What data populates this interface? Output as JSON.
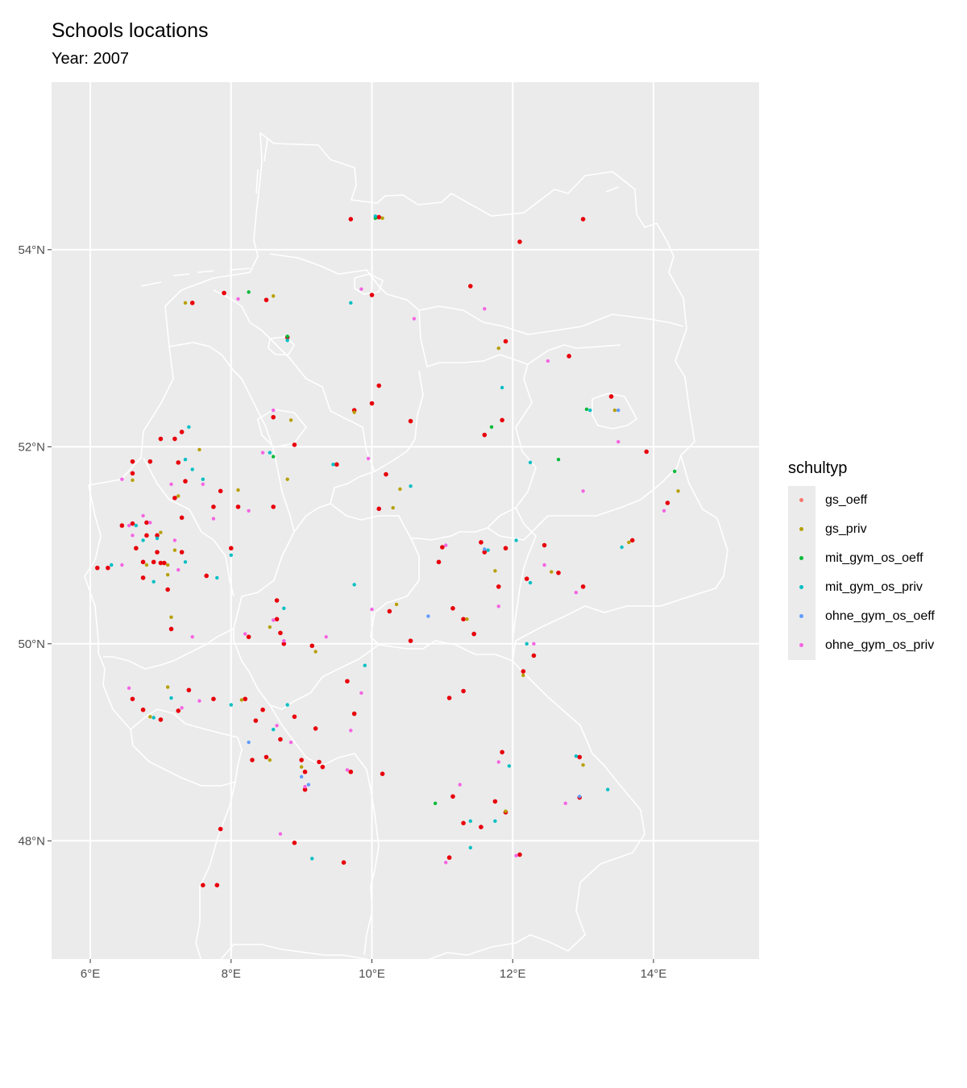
{
  "title": "Schools locations",
  "subtitle": "Year: 2007",
  "chart_data": {
    "type": "scatter",
    "projection": "map",
    "title": "Schools locations",
    "subtitle": "Year: 2007",
    "xlim": [
      5.45,
      15.5
    ],
    "ylim": [
      46.8,
      55.7
    ],
    "x_ticks": [
      {
        "value": 6,
        "label": "6°E"
      },
      {
        "value": 8,
        "label": "8°E"
      },
      {
        "value": 10,
        "label": "10°E"
      },
      {
        "value": 12,
        "label": "12°E"
      },
      {
        "value": 14,
        "label": "14°E"
      }
    ],
    "y_ticks": [
      {
        "value": 48,
        "label": "48°N"
      },
      {
        "value": 50,
        "label": "50°N"
      },
      {
        "value": 52,
        "label": "52°N"
      },
      {
        "value": 54,
        "label": "54°N"
      }
    ],
    "grid": true,
    "background": "#ebebeb",
    "legend": {
      "title": "schultyp",
      "position": "right",
      "entries": [
        {
          "name": "gs_oeff",
          "color": "#f8766d"
        },
        {
          "name": "gs_priv",
          "color": "#b79f00"
        },
        {
          "name": "mit_gym_os_oeff",
          "color": "#00ba38"
        },
        {
          "name": "mit_gym_os_priv",
          "color": "#00bfc4"
        },
        {
          "name": "ohne_gym_os_oeff",
          "color": "#619cff"
        },
        {
          "name": "ohne_gym_os_priv",
          "color": "#f564e3"
        }
      ]
    },
    "highlight_color": "#e8000b",
    "boundary_color": "#ffffff",
    "series": [
      {
        "name": "gs_oeff",
        "color": "#f8766d",
        "points": [
          [
            9.7,
            54.31
          ],
          [
            10.1,
            54.33
          ],
          [
            13.0,
            54.31
          ],
          [
            12.1,
            54.08
          ],
          [
            7.45,
            53.46
          ],
          [
            7.9,
            53.56
          ],
          [
            8.5,
            53.49
          ],
          [
            10.0,
            53.54
          ],
          [
            11.4,
            53.63
          ],
          [
            8.8,
            53.11
          ],
          [
            11.9,
            53.07
          ],
          [
            12.8,
            52.92
          ],
          [
            10.1,
            52.62
          ],
          [
            9.75,
            52.37
          ],
          [
            10.0,
            52.44
          ],
          [
            10.55,
            52.26
          ],
          [
            8.6,
            52.3
          ],
          [
            13.4,
            52.51
          ],
          [
            11.85,
            52.27
          ],
          [
            11.6,
            52.12
          ],
          [
            13.9,
            51.95
          ],
          [
            8.9,
            52.02
          ],
          [
            9.5,
            51.82
          ],
          [
            7.2,
            52.08
          ],
          [
            7.0,
            52.08
          ],
          [
            6.6,
            51.85
          ],
          [
            6.85,
            51.85
          ],
          [
            7.25,
            51.84
          ],
          [
            7.3,
            52.15
          ],
          [
            10.2,
            51.72
          ],
          [
            7.35,
            51.65
          ],
          [
            7.85,
            51.55
          ],
          [
            7.2,
            51.48
          ],
          [
            6.6,
            51.73
          ],
          [
            7.75,
            51.39
          ],
          [
            8.1,
            51.39
          ],
          [
            8.6,
            51.39
          ],
          [
            10.1,
            51.37
          ],
          [
            7.3,
            51.28
          ],
          [
            6.45,
            51.2
          ],
          [
            6.6,
            51.22
          ],
          [
            6.8,
            51.23
          ],
          [
            6.8,
            51.1
          ],
          [
            6.65,
            50.97
          ],
          [
            6.95,
            51.1
          ],
          [
            6.95,
            50.93
          ],
          [
            7.3,
            50.93
          ],
          [
            6.75,
            50.83
          ],
          [
            6.9,
            50.83
          ],
          [
            7.0,
            50.82
          ],
          [
            7.05,
            50.82
          ],
          [
            6.1,
            50.77
          ],
          [
            6.25,
            50.77
          ],
          [
            8.0,
            50.97
          ],
          [
            7.65,
            50.69
          ],
          [
            6.75,
            50.67
          ],
          [
            7.1,
            50.55
          ],
          [
            11.0,
            50.98
          ],
          [
            11.55,
            51.03
          ],
          [
            11.9,
            50.97
          ],
          [
            12.45,
            51.0
          ],
          [
            13.7,
            51.05
          ],
          [
            14.2,
            51.43
          ],
          [
            11.6,
            50.93
          ],
          [
            10.95,
            50.83
          ],
          [
            12.65,
            50.72
          ],
          [
            13.0,
            50.58
          ],
          [
            11.8,
            50.58
          ],
          [
            12.2,
            50.66
          ],
          [
            8.65,
            50.44
          ],
          [
            10.25,
            50.33
          ],
          [
            11.15,
            50.36
          ],
          [
            11.3,
            50.25
          ],
          [
            7.15,
            50.15
          ],
          [
            8.65,
            50.25
          ],
          [
            8.7,
            50.11
          ],
          [
            8.75,
            50.0
          ],
          [
            8.25,
            50.07
          ],
          [
            9.15,
            49.98
          ],
          [
            10.55,
            50.03
          ],
          [
            11.45,
            50.1
          ],
          [
            12.3,
            49.88
          ],
          [
            12.15,
            49.72
          ],
          [
            6.6,
            49.44
          ],
          [
            6.75,
            49.33
          ],
          [
            7.0,
            49.23
          ],
          [
            7.25,
            49.32
          ],
          [
            7.4,
            49.53
          ],
          [
            7.75,
            49.44
          ],
          [
            8.2,
            49.44
          ],
          [
            8.35,
            49.22
          ],
          [
            8.45,
            49.33
          ],
          [
            8.7,
            49.03
          ],
          [
            8.9,
            49.26
          ],
          [
            9.2,
            49.14
          ],
          [
            9.65,
            49.62
          ],
          [
            9.75,
            49.29
          ],
          [
            11.1,
            49.45
          ],
          [
            11.3,
            49.52
          ],
          [
            8.3,
            48.82
          ],
          [
            8.5,
            48.85
          ],
          [
            9.0,
            48.82
          ],
          [
            9.05,
            48.7
          ],
          [
            9.05,
            48.52
          ],
          [
            9.25,
            48.8
          ],
          [
            9.3,
            48.75
          ],
          [
            9.7,
            48.7
          ],
          [
            10.15,
            48.68
          ],
          [
            11.15,
            48.45
          ],
          [
            11.3,
            48.18
          ],
          [
            11.55,
            48.14
          ],
          [
            11.75,
            48.4
          ],
          [
            11.9,
            48.29
          ],
          [
            11.85,
            48.9
          ],
          [
            12.95,
            48.85
          ],
          [
            12.95,
            48.44
          ],
          [
            7.85,
            48.12
          ],
          [
            8.9,
            47.98
          ],
          [
            9.6,
            47.78
          ],
          [
            11.1,
            47.83
          ],
          [
            12.1,
            47.86
          ],
          [
            7.6,
            47.55
          ],
          [
            7.8,
            47.55
          ]
        ]
      },
      {
        "name": "gs_priv",
        "color": "#b79f00",
        "points": [
          [
            7.35,
            53.46
          ],
          [
            8.6,
            53.53
          ],
          [
            10.15,
            54.32
          ],
          [
            11.8,
            53.0
          ],
          [
            9.75,
            52.35
          ],
          [
            8.85,
            52.27
          ],
          [
            13.45,
            52.37
          ],
          [
            7.55,
            51.97
          ],
          [
            8.8,
            51.67
          ],
          [
            6.6,
            51.66
          ],
          [
            10.4,
            51.57
          ],
          [
            10.3,
            51.38
          ],
          [
            7.25,
            51.5
          ],
          [
            8.1,
            51.56
          ],
          [
            6.8,
            50.8
          ],
          [
            7.0,
            51.13
          ],
          [
            7.2,
            50.95
          ],
          [
            7.1,
            50.8
          ],
          [
            7.1,
            50.7
          ],
          [
            7.15,
            50.27
          ],
          [
            8.55,
            50.17
          ],
          [
            10.35,
            50.4
          ],
          [
            11.35,
            50.25
          ],
          [
            13.65,
            51.03
          ],
          [
            14.35,
            51.55
          ],
          [
            12.55,
            50.73
          ],
          [
            11.75,
            50.74
          ],
          [
            12.15,
            49.68
          ],
          [
            9.2,
            49.92
          ],
          [
            7.1,
            49.56
          ],
          [
            6.85,
            49.26
          ],
          [
            8.15,
            49.43
          ],
          [
            13.0,
            48.77
          ],
          [
            11.9,
            48.3
          ],
          [
            8.55,
            48.82
          ],
          [
            9.0,
            48.75
          ]
        ]
      },
      {
        "name": "mit_gym_os_oeff",
        "color": "#00ba38",
        "points": [
          [
            8.8,
            53.12
          ],
          [
            10.05,
            54.32
          ],
          [
            11.7,
            52.2
          ],
          [
            13.05,
            52.38
          ],
          [
            14.3,
            51.75
          ],
          [
            12.65,
            51.87
          ],
          [
            8.6,
            51.9
          ],
          [
            10.9,
            48.38
          ],
          [
            8.25,
            53.57
          ]
        ]
      },
      {
        "name": "mit_gym_os_priv",
        "color": "#00bfc4",
        "points": [
          [
            9.7,
            53.46
          ],
          [
            8.8,
            53.08
          ],
          [
            11.85,
            52.6
          ],
          [
            10.05,
            54.34
          ],
          [
            12.25,
            51.84
          ],
          [
            13.1,
            52.37
          ],
          [
            10.55,
            51.6
          ],
          [
            9.45,
            51.82
          ],
          [
            8.55,
            51.94
          ],
          [
            7.4,
            52.2
          ],
          [
            7.35,
            51.87
          ],
          [
            7.45,
            51.77
          ],
          [
            7.6,
            51.67
          ],
          [
            6.65,
            51.2
          ],
          [
            6.75,
            51.05
          ],
          [
            6.95,
            51.07
          ],
          [
            6.3,
            50.8
          ],
          [
            6.9,
            50.63
          ],
          [
            7.35,
            50.83
          ],
          [
            7.8,
            50.67
          ],
          [
            8.0,
            50.9
          ],
          [
            8.75,
            50.36
          ],
          [
            12.05,
            51.05
          ],
          [
            13.55,
            50.98
          ],
          [
            12.25,
            50.62
          ],
          [
            11.65,
            50.95
          ],
          [
            12.2,
            50.0
          ],
          [
            9.9,
            49.78
          ],
          [
            8.0,
            49.38
          ],
          [
            7.15,
            49.45
          ],
          [
            6.9,
            49.25
          ],
          [
            8.6,
            49.13
          ],
          [
            12.9,
            48.86
          ],
          [
            11.95,
            48.76
          ],
          [
            13.35,
            48.52
          ],
          [
            11.75,
            48.2
          ],
          [
            11.4,
            48.2
          ],
          [
            11.4,
            47.93
          ],
          [
            9.15,
            47.82
          ],
          [
            8.8,
            49.38
          ],
          [
            9.75,
            50.6
          ]
        ]
      },
      {
        "name": "ohne_gym_os_oeff",
        "color": "#619cff",
        "points": [
          [
            8.25,
            49.0
          ],
          [
            10.8,
            50.28
          ],
          [
            12.95,
            48.45
          ],
          [
            9.1,
            48.57
          ],
          [
            9.0,
            48.65
          ],
          [
            11.6,
            50.96
          ],
          [
            13.5,
            52.37
          ]
        ]
      },
      {
        "name": "ohne_gym_os_priv",
        "color": "#f564e3",
        "points": [
          [
            8.1,
            53.5
          ],
          [
            9.85,
            53.6
          ],
          [
            10.6,
            53.3
          ],
          [
            11.6,
            53.4
          ],
          [
            12.5,
            52.87
          ],
          [
            13.5,
            52.05
          ],
          [
            13.0,
            51.55
          ],
          [
            14.15,
            51.35
          ],
          [
            9.95,
            51.88
          ],
          [
            8.6,
            52.37
          ],
          [
            8.45,
            51.94
          ],
          [
            7.15,
            51.62
          ],
          [
            7.6,
            51.62
          ],
          [
            7.75,
            51.27
          ],
          [
            8.25,
            51.35
          ],
          [
            6.45,
            51.67
          ],
          [
            6.75,
            51.3
          ],
          [
            6.55,
            51.2
          ],
          [
            6.6,
            51.1
          ],
          [
            6.45,
            50.8
          ],
          [
            6.85,
            51.23
          ],
          [
            7.2,
            51.05
          ],
          [
            7.25,
            50.75
          ],
          [
            7.45,
            50.07
          ],
          [
            9.35,
            50.07
          ],
          [
            10.0,
            50.35
          ],
          [
            11.8,
            50.38
          ],
          [
            12.3,
            50.0
          ],
          [
            12.45,
            50.8
          ],
          [
            11.05,
            51.0
          ],
          [
            12.9,
            50.52
          ],
          [
            8.2,
            50.1
          ],
          [
            8.6,
            50.24
          ],
          [
            8.75,
            50.03
          ],
          [
            9.85,
            49.5
          ],
          [
            9.7,
            49.12
          ],
          [
            7.55,
            49.42
          ],
          [
            6.55,
            49.55
          ],
          [
            7.3,
            49.35
          ],
          [
            8.65,
            49.17
          ],
          [
            8.85,
            49.0
          ],
          [
            9.65,
            48.72
          ],
          [
            11.25,
            48.57
          ],
          [
            12.75,
            48.38
          ],
          [
            11.8,
            48.8
          ],
          [
            9.05,
            48.55
          ],
          [
            8.7,
            48.07
          ],
          [
            11.05,
            47.78
          ],
          [
            12.05,
            47.85
          ]
        ]
      }
    ]
  }
}
